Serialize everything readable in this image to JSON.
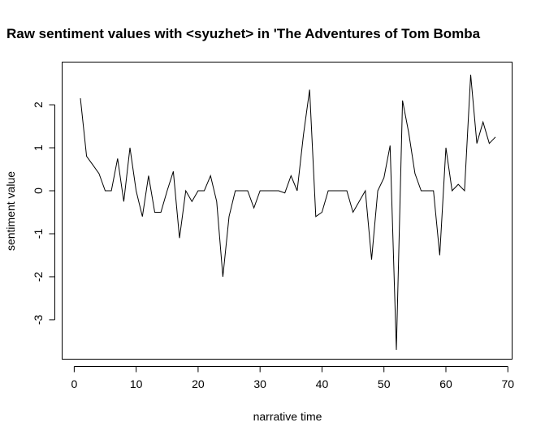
{
  "chart_data": {
    "type": "line",
    "title": "Raw sentiment values with <syuzhet> in 'The Adventures of Tom Bomba",
    "xlabel": "narrative time",
    "ylabel": "sentiment value",
    "xlim": [
      1,
      68
    ],
    "ylim": [
      -3.7,
      2.7
    ],
    "x_ticks": [
      0,
      10,
      20,
      30,
      40,
      50,
      60,
      70
    ],
    "x_tick_labels": [
      "0",
      "10",
      "20",
      "30",
      "40",
      "50",
      "60",
      "70"
    ],
    "y_ticks": [
      -3,
      -2,
      -1,
      0,
      1,
      2
    ],
    "y_tick_labels": [
      "-3",
      "-2",
      "-1",
      "0",
      "1",
      "2"
    ],
    "grid": false,
    "series": [
      {
        "color": "#000000",
        "x": [
          1,
          2,
          3,
          4,
          5,
          6,
          7,
          8,
          9,
          10,
          11,
          12,
          13,
          14,
          15,
          16,
          17,
          18,
          19,
          20,
          21,
          22,
          23,
          24,
          25,
          26,
          27,
          28,
          29,
          30,
          31,
          32,
          33,
          34,
          35,
          36,
          37,
          38,
          39,
          40,
          41,
          42,
          43,
          44,
          45,
          46,
          47,
          48,
          49,
          50,
          51,
          52,
          53,
          54,
          55,
          56,
          57,
          58,
          59,
          60,
          61,
          62,
          63,
          64,
          65,
          66,
          67,
          68
        ],
        "values": [
          2.15,
          0.8,
          0.6,
          0.4,
          0.0,
          0.0,
          0.75,
          -0.25,
          1.0,
          0.0,
          -0.6,
          0.35,
          -0.5,
          -0.5,
          0.0,
          0.45,
          -1.1,
          0.0,
          -0.25,
          0.0,
          0.0,
          0.35,
          -0.25,
          -2.0,
          -0.6,
          0.0,
          0.0,
          0.0,
          -0.4,
          0.0,
          0.0,
          0.0,
          0.0,
          -0.05,
          0.35,
          0.0,
          1.3,
          2.35,
          -0.6,
          -0.5,
          0.0,
          0.0,
          0.0,
          0.0,
          -0.5,
          -0.25,
          0.0,
          -1.6,
          0.0,
          0.3,
          1.05,
          -3.7,
          2.1,
          1.35,
          0.4,
          0.0,
          0.0,
          0.0,
          -1.5,
          1.0,
          0.0,
          0.15,
          0.0,
          2.7,
          1.1,
          1.6,
          1.1,
          1.25
        ]
      }
    ]
  }
}
